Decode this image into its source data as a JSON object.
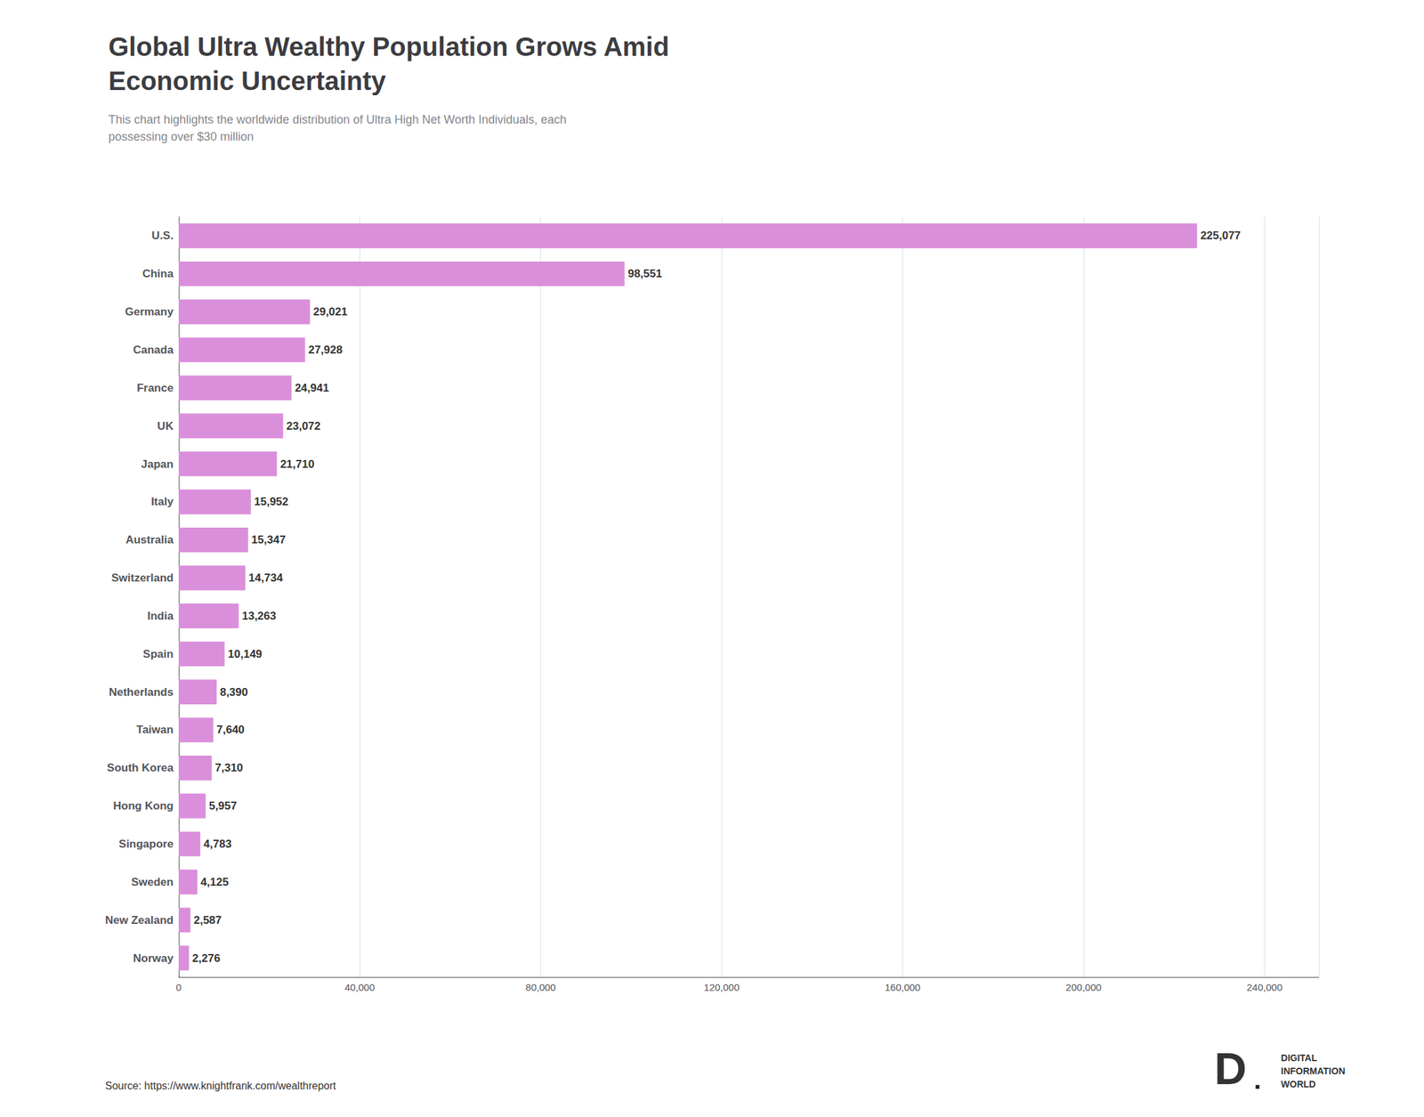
{
  "chart_data": {
    "type": "bar",
    "orientation": "horizontal",
    "title": "Global Ultra Wealthy Population Grows Amid\nEconomic Uncertainty",
    "subtitle": "This chart highlights the worldwide distribution of Ultra High Net Worth Individuals, each\npossessing over $30 million",
    "annotations": [
      "Source: https://www.knightfrank.com/wealthreport",
      "D",
      "DIGITAL\nINFORMATION\nWORLD",
      "■"
    ],
    "categories": [
      "U.S.",
      "China",
      "Germany",
      "Canada",
      "France",
      "UK",
      "Japan",
      "Italy",
      "Australia",
      "Switzerland",
      "India",
      "Spain",
      "Netherlands",
      "Taiwan",
      "South Korea",
      "Hong Kong",
      "Singapore",
      "Sweden",
      "New Zealand",
      "Norway"
    ],
    "values": [
      225077,
      98551,
      29021,
      27928,
      24941,
      23072,
      21710,
      15952,
      15347,
      14734,
      13263,
      10149,
      8390,
      7640,
      7310,
      5957,
      4783,
      4125,
      2587,
      2276
    ],
    "value_labels": [
      "225,077",
      "98,551",
      "29,021",
      "27,928",
      "24,941",
      "23,072",
      "21,710",
      "15,952",
      "15,347",
      "14,734",
      "13,263",
      "10,149",
      "8,390",
      "7,640",
      "7,310",
      "5,957",
      "4,783",
      "4,125",
      "2,587",
      "2,276"
    ],
    "data_labels": true,
    "color": "#da8fda",
    "xlim": [
      0,
      252000
    ],
    "xticks": [
      0,
      {
        "value": 40000,
        "label": "40,000"
      },
      {
        "value": 80000,
        "label": "80,000"
      },
      {
        "value": 120000,
        "label": "120,000"
      },
      {
        "value": 160000,
        "label": "160,000"
      },
      {
        "value": 200000,
        "label": "200,000"
      },
      {
        "value": 240000,
        "label": "240,000"
      }
    ],
    "grid": true
  }
}
